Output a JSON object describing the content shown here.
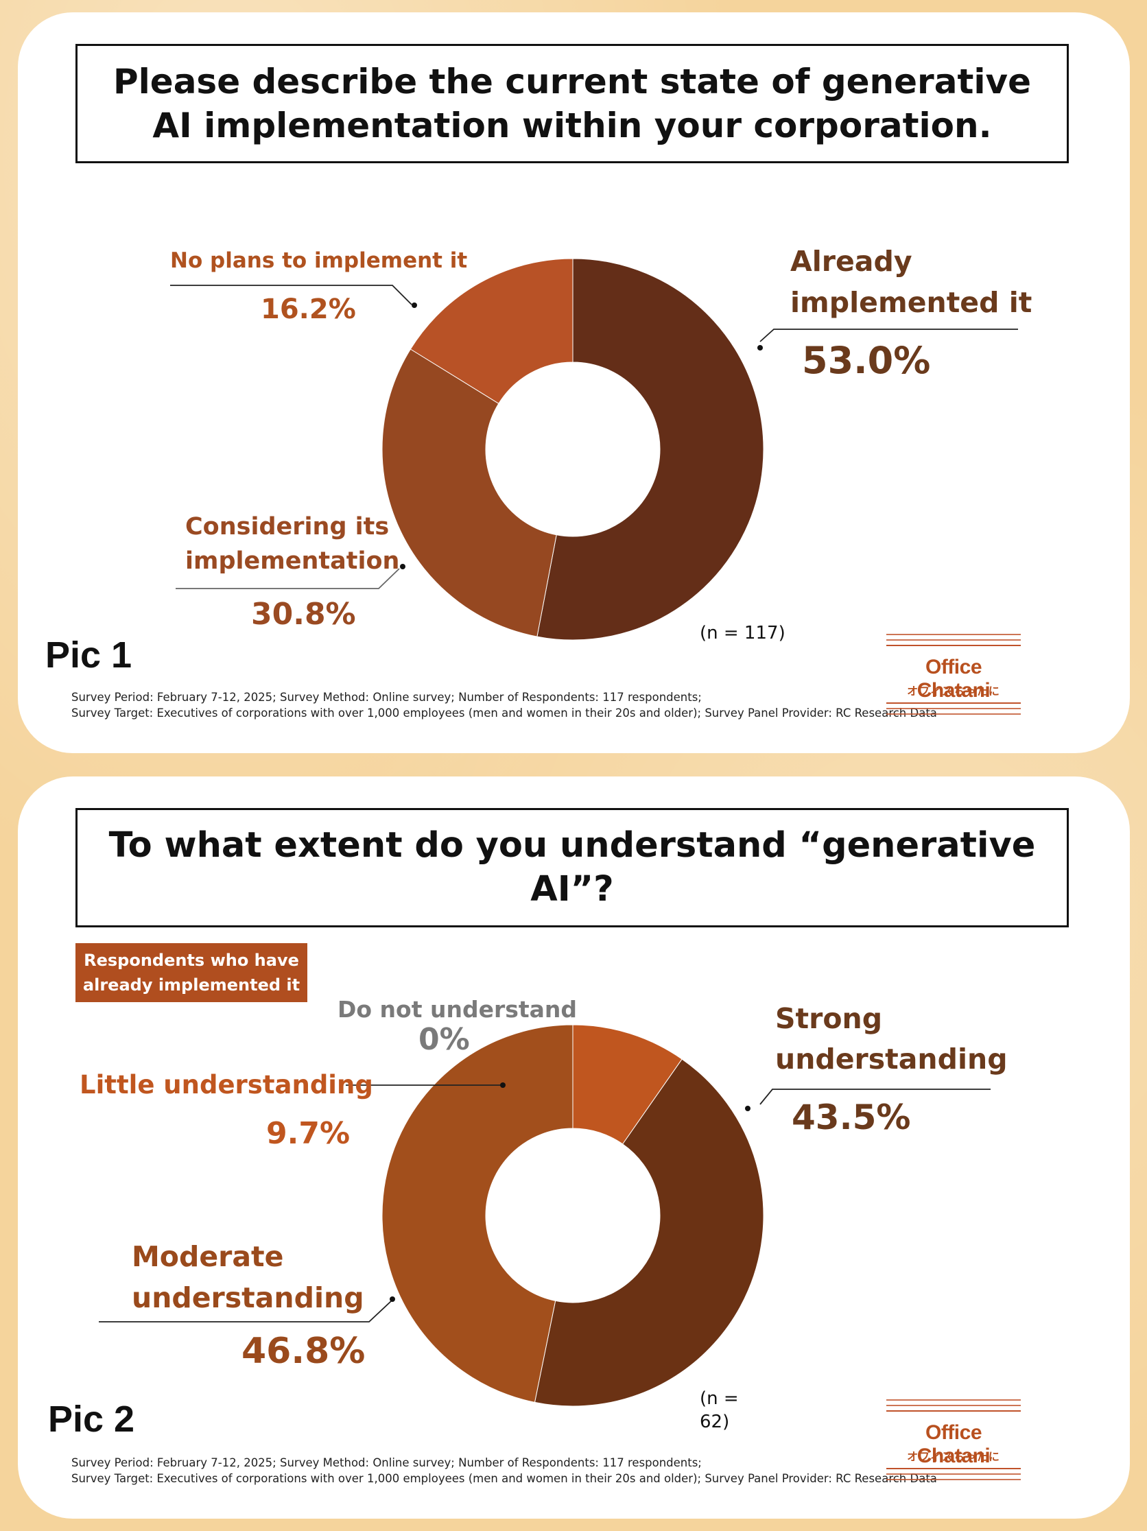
{
  "chart_data": [
    {
      "type": "pie",
      "title": "Please describe the current state of generative AI implementation within your corporation.",
      "pic_label": "Pic 1",
      "n_label": "(n = 117)",
      "footnote_line1": "Survey Period: February 7-12, 2025; Survey Method: Online survey;  Number of Respondents: 117 respondents;",
      "footnote_line2": "Survey Target: Executives of corporations with over 1,000 employees (men and women in their 20s and older); Survey Panel Provider: RC Research Data",
      "slices": [
        {
          "label": "Already implemented it",
          "label_line1": "Already",
          "label_line2": "implemented it",
          "value": 53.0,
          "value_label": "53.0%",
          "color": "#642e18",
          "text_color": "#6a3a1c"
        },
        {
          "label": "Considering its implementation",
          "label_line1": "Considering its",
          "label_line2": "implementation",
          "value": 30.8,
          "value_label": "30.8%",
          "color": "#964821",
          "text_color": "#9a4a22"
        },
        {
          "label": "No plans to implement it",
          "value": 16.2,
          "value_label": "16.2%",
          "color": "#b85226",
          "text_color": "#b0521f"
        }
      ]
    },
    {
      "type": "pie",
      "title": "To what extent do you understand “generative AI”?",
      "badge_line1": "Respondents who have",
      "badge_line2": "already implemented it",
      "pic_label": "Pic 2",
      "n_label_line1": "(n =",
      "n_label_line2": "62)",
      "footnote_line1": "Survey Period: February 7-12, 2025; Survey Method: Online survey;  Number of Respondents: 117 respondents;",
      "footnote_line2": "Survey Target: Executives of corporations with over 1,000 employees (men and women in their 20s and older); Survey Panel Provider: RC Research Data",
      "slices": [
        {
          "label": "Do not understand",
          "value": 0,
          "value_label": "0%",
          "color": "#c05a2a",
          "text_color": "#7a7a7a"
        },
        {
          "label": "Little understanding",
          "value": 9.7,
          "value_label": "9.7%",
          "color": "#c0561f",
          "text_color": "#c0561f"
        },
        {
          "label": "Strong understanding",
          "label_line1": "Strong",
          "label_line2": "understanding",
          "value": 43.5,
          "value_label": "43.5%",
          "color": "#6b3214",
          "text_color": "#6a3a1c"
        },
        {
          "label": "Moderate understanding",
          "label_line1": "Moderate",
          "label_line2": "understanding",
          "value": 46.8,
          "value_label": "46.8%",
          "color": "#a24f1c",
          "text_color": "#9a4a1c"
        }
      ]
    }
  ],
  "logo": {
    "name": "Office Chatani",
    "sub": "オフィスちゃたに",
    "color": "#b8501f"
  }
}
